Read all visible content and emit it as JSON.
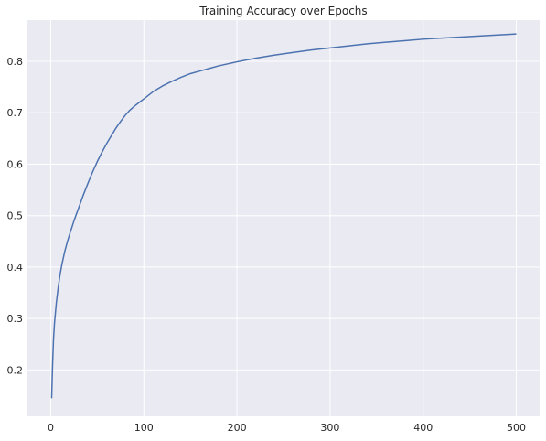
{
  "chart_data": {
    "type": "line",
    "title": "Training Accuracy over Epochs",
    "xlabel": "",
    "ylabel": "",
    "xlim": [
      -25,
      525
    ],
    "ylim": [
      0.11,
      0.88
    ],
    "xticks": [
      0,
      100,
      200,
      300,
      400,
      500
    ],
    "yticks": [
      0.2,
      0.3,
      0.4,
      0.5,
      0.6,
      0.7,
      0.8
    ],
    "grid": true,
    "background": "#eaeaf2",
    "grid_color": "#ffffff",
    "line_color": "#4c72b0",
    "series": [
      {
        "x": [
          1,
          2,
          3,
          4,
          5,
          6,
          8,
          10,
          12,
          15,
          18,
          20,
          25,
          30,
          35,
          40,
          45,
          50,
          55,
          60,
          65,
          70,
          75,
          80,
          85,
          90,
          95,
          100,
          110,
          120,
          130,
          140,
          150,
          160,
          170,
          180,
          190,
          200,
          220,
          240,
          260,
          280,
          300,
          320,
          340,
          360,
          380,
          400,
          420,
          440,
          460,
          480,
          500
        ],
        "y": [
          0.145,
          0.21,
          0.26,
          0.29,
          0.31,
          0.33,
          0.36,
          0.385,
          0.405,
          0.43,
          0.45,
          0.462,
          0.49,
          0.515,
          0.54,
          0.563,
          0.585,
          0.605,
          0.623,
          0.64,
          0.655,
          0.67,
          0.683,
          0.695,
          0.705,
          0.713,
          0.72,
          0.727,
          0.741,
          0.752,
          0.761,
          0.769,
          0.776,
          0.781,
          0.786,
          0.791,
          0.795,
          0.799,
          0.806,
          0.812,
          0.817,
          0.822,
          0.826,
          0.83,
          0.834,
          0.837,
          0.84,
          0.843,
          0.845,
          0.847,
          0.849,
          0.851,
          0.853
        ]
      }
    ]
  }
}
